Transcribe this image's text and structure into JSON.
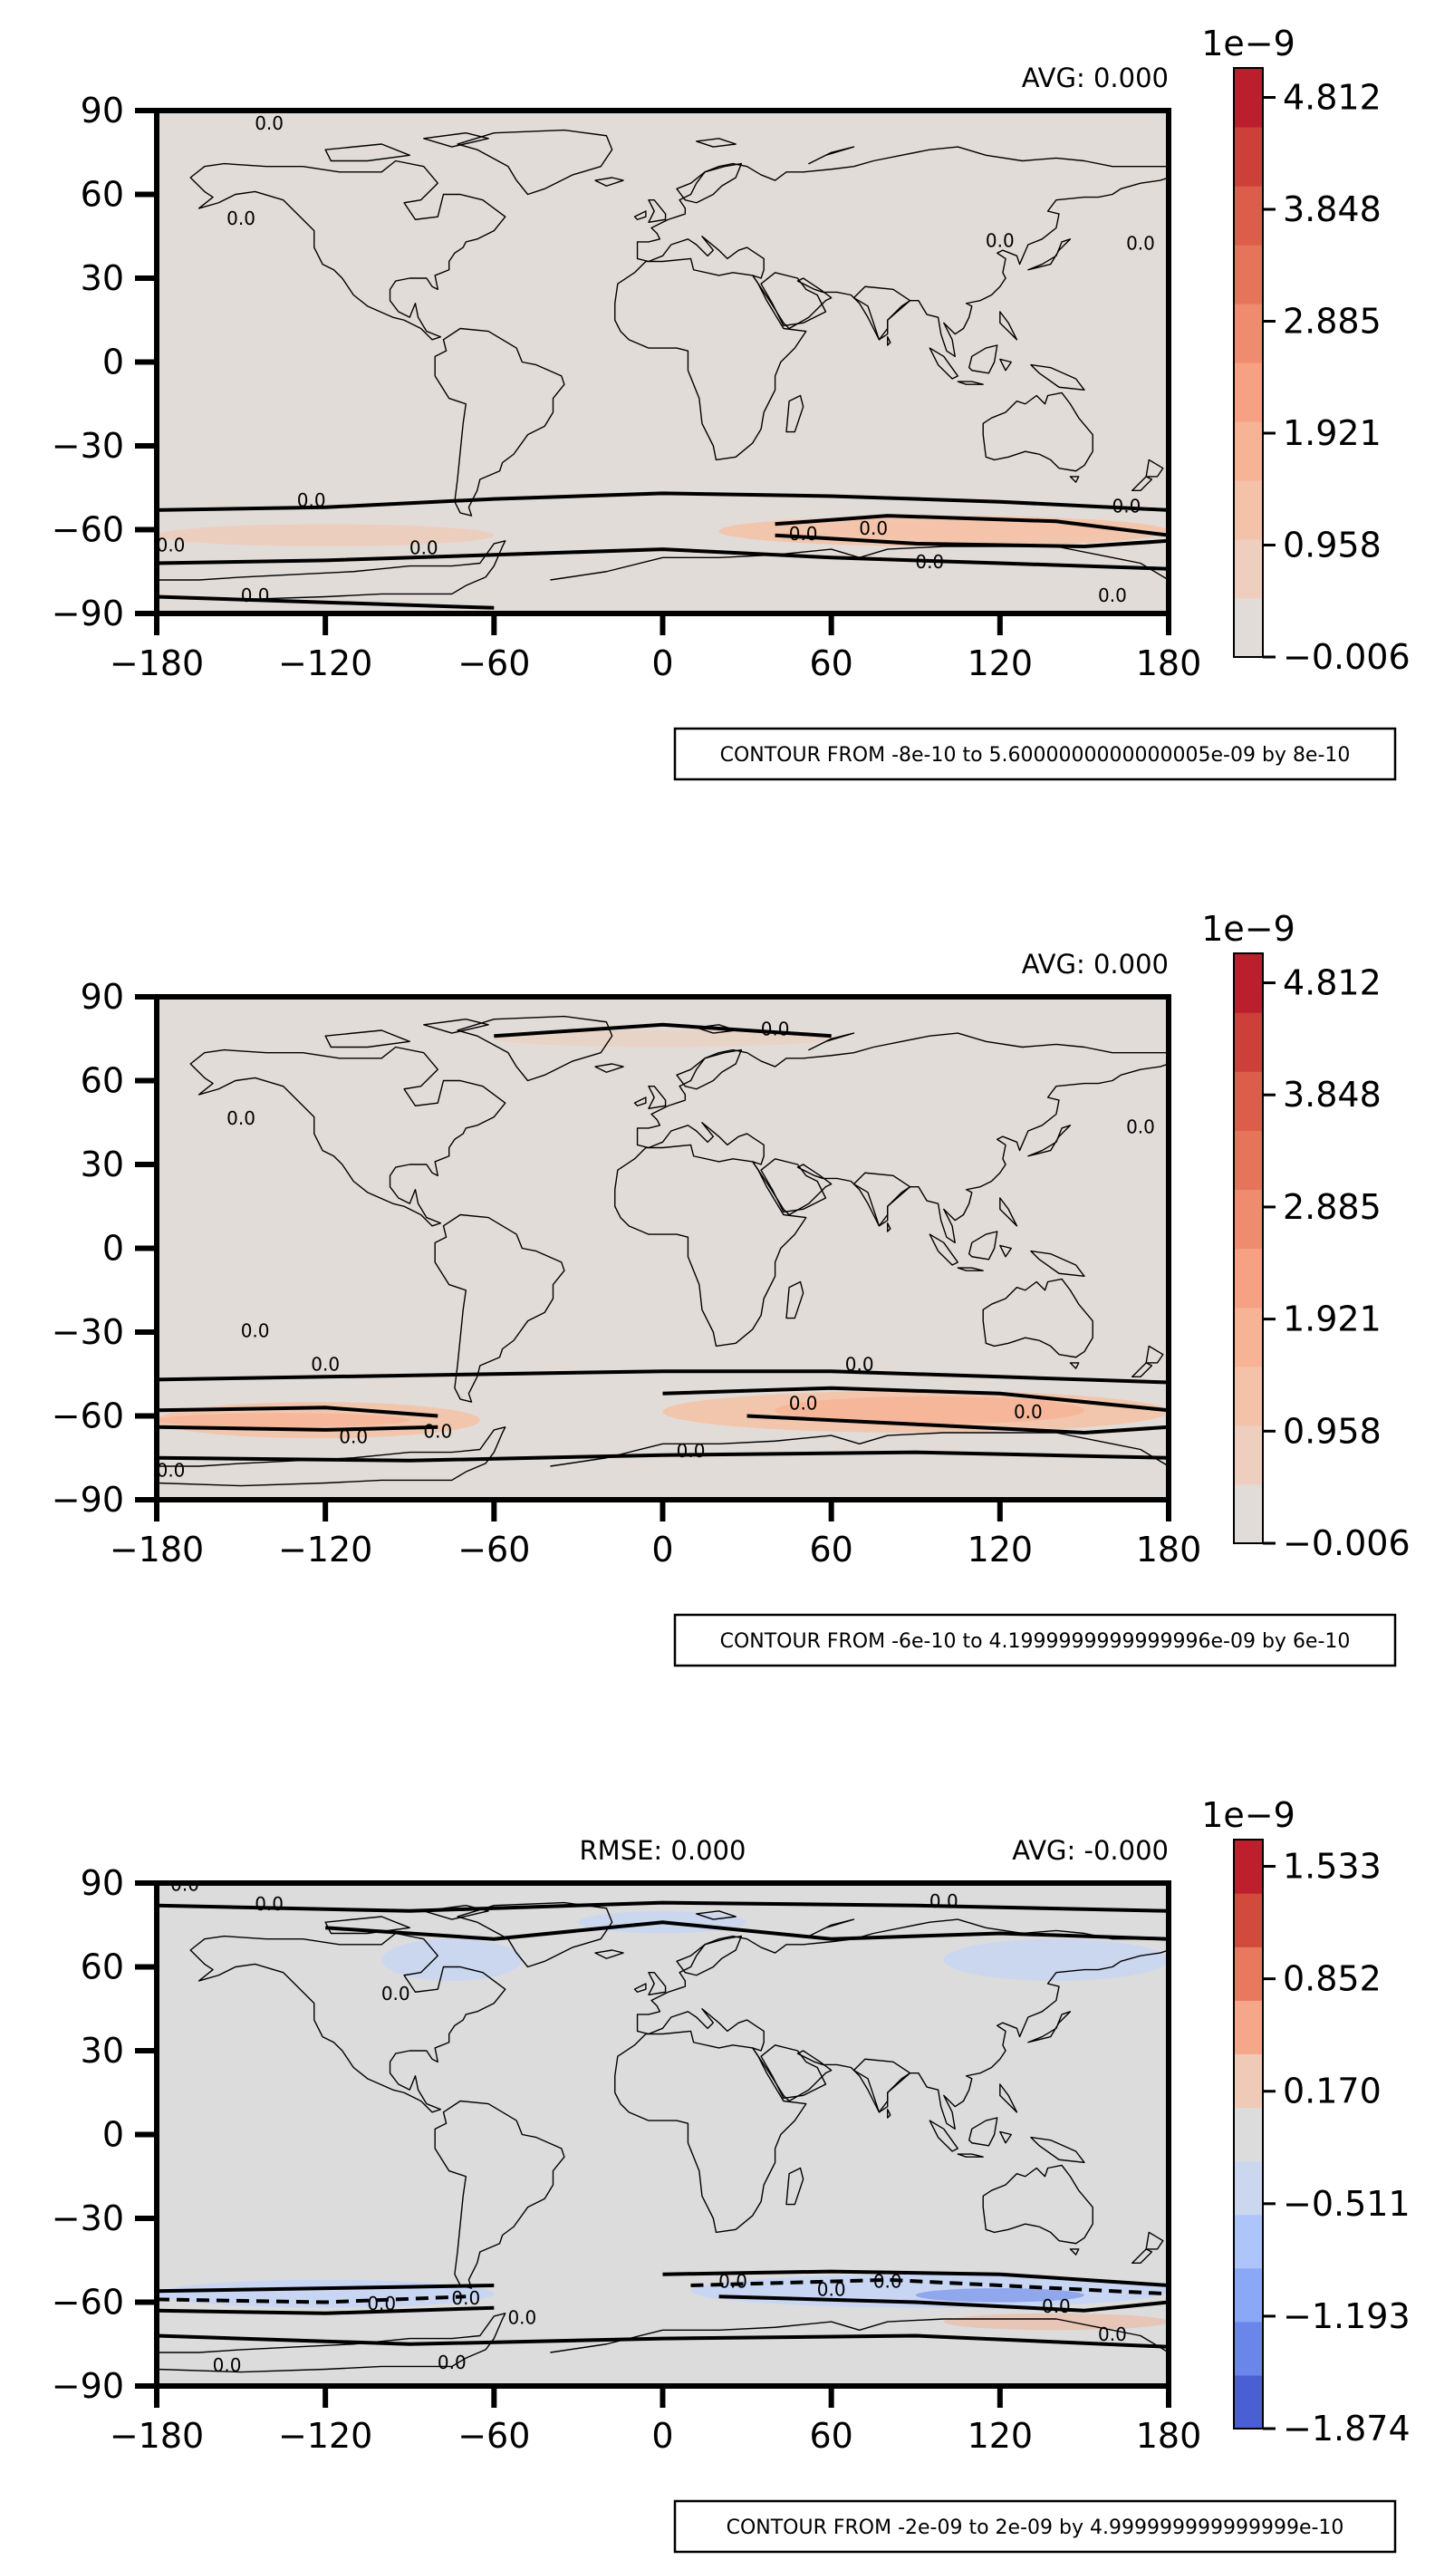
{
  "chart_data": [
    {
      "type": "heatmap",
      "subtitle_right": "AVG: 0.000",
      "x_ticks": [
        "−180",
        "−120",
        "−60",
        "0",
        "60",
        "120",
        "180"
      ],
      "y_ticks": [
        "90",
        "60",
        "30",
        "0",
        "−30",
        "−60",
        "−90"
      ],
      "xlim": [
        -180,
        180
      ],
      "ylim": [
        -90,
        90
      ],
      "colorbar": {
        "multiplier": "1e−9",
        "tick_labels": [
          "4.812",
          "3.848",
          "2.885",
          "1.921",
          "0.958",
          "−0.006"
        ],
        "levels": [
          "#e2dcd8",
          "#eecfbf",
          "#f4c2a9",
          "#f7b396",
          "#f5a182",
          "#ef8b6f",
          "#e6745b",
          "#dc5d4a",
          "#cc4039",
          "#bb1f2d"
        ]
      },
      "contour_note": "CONTOUR FROM -8e-10 to 5.6000000000000005e-09 by 8e-10",
      "contour_labels": [
        "0.0",
        "0.0",
        "0.0",
        "0.0",
        "0.0",
        "0.0",
        "0.0",
        "0.0",
        "0.0",
        "0.0",
        "0.0",
        "0.0",
        "0.0"
      ]
    },
    {
      "type": "heatmap",
      "subtitle_right": "AVG: 0.000",
      "x_ticks": [
        "−180",
        "−120",
        "−60",
        "0",
        "60",
        "120",
        "180"
      ],
      "y_ticks": [
        "90",
        "60",
        "30",
        "0",
        "−30",
        "−60",
        "−90"
      ],
      "xlim": [
        -180,
        180
      ],
      "ylim": [
        -90,
        90
      ],
      "colorbar": {
        "multiplier": "1e−9",
        "tick_labels": [
          "4.812",
          "3.848",
          "2.885",
          "1.921",
          "0.958",
          "−0.006"
        ],
        "levels": [
          "#e2dcd8",
          "#eecfbf",
          "#f4c2a9",
          "#f7b396",
          "#f5a182",
          "#ef8b6f",
          "#e6745b",
          "#dc5d4a",
          "#cc4039",
          "#bb1f2d"
        ]
      },
      "contour_note": "CONTOUR FROM -6e-10 to 4.1999999999999996e-09 by 6e-10",
      "contour_labels": [
        "0.0",
        "0.0",
        "0.0",
        "0.0",
        "0.0",
        "0.0",
        "0.0",
        "0.0",
        "0.0",
        "0.0",
        "0.0",
        "0.0"
      ]
    },
    {
      "type": "heatmap",
      "subtitle_center": "RMSE: 0.000",
      "subtitle_right": "AVG: -0.000",
      "x_ticks": [
        "−180",
        "−120",
        "−60",
        "0",
        "60",
        "120",
        "180"
      ],
      "y_ticks": [
        "90",
        "60",
        "30",
        "0",
        "−30",
        "−60",
        "−90"
      ],
      "xlim": [
        -180,
        180
      ],
      "ylim": [
        -90,
        90
      ],
      "colorbar": {
        "multiplier": "1e−9",
        "tick_labels": [
          "1.533",
          "0.852",
          "0.170",
          "−0.511",
          "−1.193",
          "−1.874"
        ],
        "levels": [
          "#4a5fd3",
          "#6a86ea",
          "#8aa8f5",
          "#adc5fa",
          "#cbd7ef",
          "#dcdcdc",
          "#efcbb7",
          "#f4a889",
          "#e8795e",
          "#d24a3c",
          "#bd1f2d"
        ]
      },
      "contour_note": "CONTOUR FROM -2e-09 to 2e-09 by 4.999999999999999e-10",
      "contour_labels": [
        "0.0",
        "0.0",
        "0.0",
        "0.0",
        "0.0",
        "0.0",
        "0.0",
        "0.0",
        "0.0",
        "0.0",
        "0.0",
        "0.0",
        "0.0",
        "0.0"
      ]
    }
  ],
  "colors": {
    "background_p1": "#e2dcd8",
    "background_p3": "#dcdcdc",
    "positive_band": "#f4c2a9",
    "negative_band": "#c5d5f5"
  }
}
